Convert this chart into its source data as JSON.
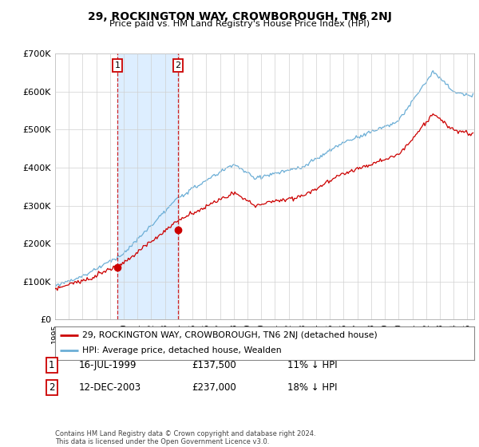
{
  "title": "29, ROCKINGTON WAY, CROWBOROUGH, TN6 2NJ",
  "subtitle": "Price paid vs. HM Land Registry's House Price Index (HPI)",
  "legend_line1": "29, ROCKINGTON WAY, CROWBOROUGH, TN6 2NJ (detached house)",
  "legend_line2": "HPI: Average price, detached house, Wealden",
  "sale1_label": "1",
  "sale1_date": "16-JUL-1999",
  "sale1_price": "£137,500",
  "sale1_hpi": "11% ↓ HPI",
  "sale2_label": "2",
  "sale2_date": "12-DEC-2003",
  "sale2_price": "£237,000",
  "sale2_hpi": "18% ↓ HPI",
  "footer": "Contains HM Land Registry data © Crown copyright and database right 2024.\nThis data is licensed under the Open Government Licence v3.0.",
  "hpi_color": "#6baed6",
  "price_color": "#cc0000",
  "sale_marker_color": "#cc0000",
  "shade_color": "#ddeeff",
  "background_color": "#ffffff",
  "ylim": [
    0,
    700000
  ],
  "yticks": [
    0,
    100000,
    200000,
    300000,
    400000,
    500000,
    600000,
    700000
  ],
  "sale1_year": 1999.54,
  "sale1_value": 137500,
  "sale2_year": 2003.95,
  "sale2_value": 237000,
  "xstart": 1995,
  "xend": 2025.5
}
